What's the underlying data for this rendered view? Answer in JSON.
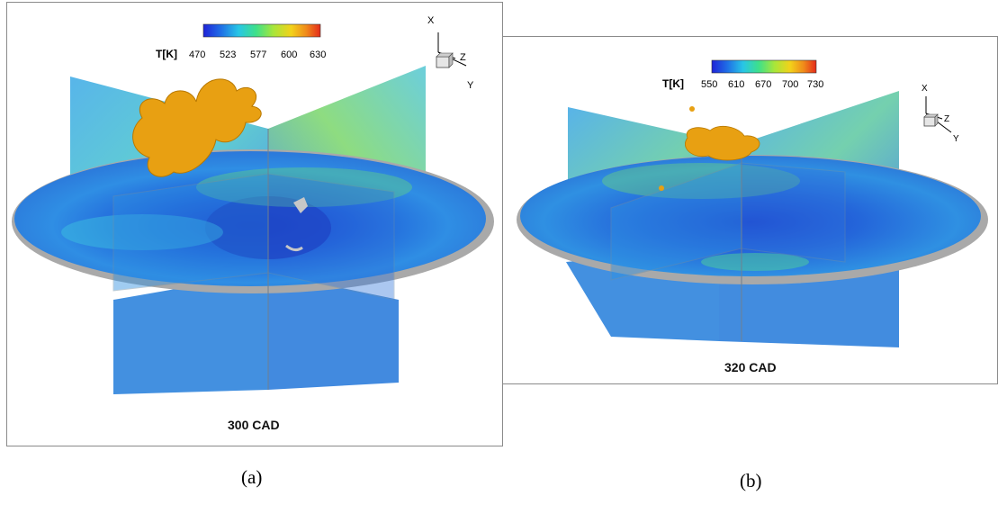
{
  "panel_a": {
    "colorbar_label": "T[K]",
    "ticks": [
      "470",
      "523",
      "577",
      "600",
      "630"
    ],
    "title": "300 CAD",
    "axes": {
      "x": "X",
      "y": "Y",
      "z": "Z"
    },
    "caption": "(a)"
  },
  "panel_b": {
    "colorbar_label": "T[K]",
    "ticks": [
      "550",
      "610",
      "670",
      "700",
      "730"
    ],
    "title": "320 CAD",
    "axes": {
      "x": "X",
      "y": "Y",
      "z": "Z"
    },
    "caption": "(b)"
  },
  "colors": {
    "colormap": [
      "#1f23d8",
      "#1f6fe6",
      "#28c6e6",
      "#3ee08a",
      "#a8e63a",
      "#f2d21a",
      "#f08a1a",
      "#e42a1a"
    ],
    "isosurface": "#e8a012",
    "disk_rim": "#a9a9a9"
  }
}
